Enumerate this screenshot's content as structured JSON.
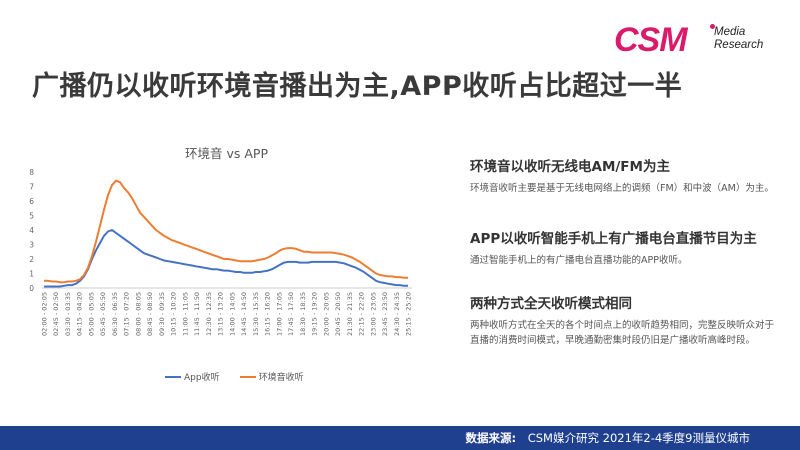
{
  "logo": {
    "mark": "CSM",
    "line1": "Media",
    "line2": "Research"
  },
  "page_title": "广播仍以收听环境音播出为主,APP收听占比超过一半",
  "points": [
    {
      "heading": "环境音以收听无线电AM/FM为主",
      "desc": "环境音收听主要是基于无线电网络上的调频（FM）和中波（AM）为主。"
    },
    {
      "heading": "APP以收听智能手机上有广播电台直播节目为主",
      "desc": "通过智能手机上的有广播电台直播功能的APP收听。"
    },
    {
      "heading": "两种方式全天收听模式相同",
      "desc": "两种收听方式在全天的各个时间点上的收听趋势相同，完整反映听众对于直播的消费时间模式，早晚通勤密集时段仍旧是广播收听高峰时段。"
    }
  ],
  "footer": {
    "label": "数据来源:",
    "text": "CSM媒介研究 2021年2-4季度9测量仪城市"
  },
  "colors": {
    "app": "#4472c4",
    "env": "#ed7d31",
    "brand": "#d81b6a",
    "footer_bg": "#1f3f8f"
  },
  "chart_data": {
    "type": "line",
    "title": "环境音 vs APP",
    "ylim": [
      0,
      8
    ],
    "yticks": [
      0,
      1,
      2,
      3,
      4,
      5,
      6,
      7,
      8
    ],
    "grid": false,
    "legend_position": "bottom",
    "x_tick_labels": [
      "02:00 - 02:05",
      "02:45 - 02:50",
      "03:30 - 03:35",
      "04:15 - 04:20",
      "05:00 - 05:05",
      "05:45 - 05:50",
      "06:30 - 06:35",
      "07:15 - 07:20",
      "08:00 - 08:05",
      "08:45 - 08:50",
      "09:30 - 09:35",
      "10:15 - 10:20",
      "11:00 - 11:05",
      "11:45 - 11:50",
      "12:30 - 12:35",
      "13:15 - 13:20",
      "14:00 - 14:05",
      "14:45 - 14:50",
      "15:30 - 15:35",
      "16:15 - 16:20",
      "17:00 - 17:05",
      "17:45 - 17:50",
      "18:30 - 18:35",
      "19:15 - 19:20",
      "20:00 - 20:05",
      "20:45 - 20:50",
      "21:30 - 21:35",
      "22:15 - 22:20",
      "23:00 - 23:05",
      "23:45 - 23:50",
      "24:30 - 24:35",
      "25:15 - 25:20"
    ],
    "series": [
      {
        "name": "App收听",
        "color": "#4472c4",
        "values": [
          0.1,
          0.1,
          0.1,
          0.1,
          0.1,
          0.15,
          0.2,
          0.2,
          0.3,
          0.5,
          0.8,
          1.3,
          2.0,
          2.6,
          3.1,
          3.6,
          3.9,
          4.0,
          3.8,
          3.6,
          3.4,
          3.2,
          3.0,
          2.8,
          2.6,
          2.4,
          2.3,
          2.2,
          2.1,
          2.0,
          1.9,
          1.85,
          1.8,
          1.75,
          1.7,
          1.65,
          1.6,
          1.55,
          1.5,
          1.45,
          1.4,
          1.35,
          1.3,
          1.3,
          1.25,
          1.2,
          1.2,
          1.15,
          1.1,
          1.1,
          1.05,
          1.05,
          1.05,
          1.1,
          1.1,
          1.15,
          1.2,
          1.3,
          1.45,
          1.6,
          1.75,
          1.8,
          1.8,
          1.8,
          1.75,
          1.75,
          1.75,
          1.8,
          1.8,
          1.8,
          1.8,
          1.8,
          1.8,
          1.8,
          1.75,
          1.7,
          1.6,
          1.5,
          1.4,
          1.25,
          1.1,
          0.9,
          0.7,
          0.5,
          0.4,
          0.35,
          0.3,
          0.25,
          0.2,
          0.2,
          0.15,
          0.15
        ]
      },
      {
        "name": "环境音收听",
        "color": "#ed7d31",
        "values": [
          0.5,
          0.5,
          0.45,
          0.45,
          0.4,
          0.4,
          0.45,
          0.45,
          0.5,
          0.6,
          0.9,
          1.4,
          2.2,
          3.2,
          4.3,
          5.4,
          6.4,
          7.1,
          7.4,
          7.3,
          6.9,
          6.6,
          6.2,
          5.7,
          5.2,
          4.9,
          4.6,
          4.3,
          4.0,
          3.8,
          3.6,
          3.45,
          3.3,
          3.2,
          3.1,
          3.0,
          2.9,
          2.8,
          2.7,
          2.6,
          2.5,
          2.4,
          2.3,
          2.2,
          2.1,
          2.0,
          2.0,
          1.95,
          1.9,
          1.85,
          1.85,
          1.85,
          1.85,
          1.9,
          1.95,
          2.0,
          2.1,
          2.25,
          2.4,
          2.6,
          2.7,
          2.75,
          2.75,
          2.7,
          2.6,
          2.5,
          2.5,
          2.45,
          2.45,
          2.45,
          2.45,
          2.45,
          2.45,
          2.4,
          2.35,
          2.3,
          2.2,
          2.1,
          1.95,
          1.8,
          1.6,
          1.4,
          1.2,
          1.0,
          0.9,
          0.85,
          0.8,
          0.8,
          0.75,
          0.75,
          0.7,
          0.7
        ]
      }
    ]
  }
}
